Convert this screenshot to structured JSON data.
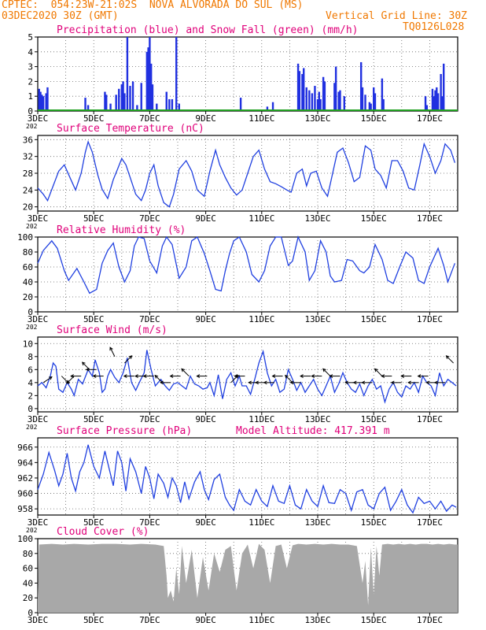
{
  "header": {
    "line1": "CPTEC:  054:23W-21:02S  NOVA ALVORADA DO SUL (MS)",
    "line2_left": "03DEC2020 30Z (GMT)",
    "line2_right": "Vertical Grid Line: 30Z",
    "code": "TQ0126L028"
  },
  "colors": {
    "header": "#f07800",
    "title": "#e0007a",
    "line": "#2040e0",
    "bar": "#2030e0",
    "snow": "#20a020",
    "cloud": "#a8a8a8",
    "wind": "#000000"
  },
  "x_labels": [
    "3DEC",
    "5DEC",
    "7DEC",
    "9DEC",
    "11DEC",
    "13DEC",
    "15DEC",
    "17DEC"
  ],
  "year_stub": "202",
  "chart_data": [
    {
      "type": "bar",
      "title": "Precipitation (blue) and Snow Fall (green) (mm/h)",
      "ylim": [
        0,
        5
      ],
      "yticks": [
        0,
        1,
        2,
        3,
        4,
        5
      ],
      "bars": [
        [
          0.05,
          1.5
        ],
        [
          0.1,
          1.3
        ],
        [
          0.15,
          1.1
        ],
        [
          0.2,
          1.0
        ],
        [
          0.3,
          1.2
        ],
        [
          0.35,
          1.6
        ],
        [
          1.7,
          0.9
        ],
        [
          1.8,
          0.4
        ],
        [
          2.4,
          1.3
        ],
        [
          2.45,
          1.1
        ],
        [
          2.6,
          0.5
        ],
        [
          2.8,
          1.1
        ],
        [
          2.9,
          1.5
        ],
        [
          3.0,
          1.8
        ],
        [
          3.05,
          2.0
        ],
        [
          3.1,
          1.2
        ],
        [
          3.2,
          5.0
        ],
        [
          3.3,
          1.7
        ],
        [
          3.4,
          2.0
        ],
        [
          3.55,
          0.4
        ],
        [
          3.7,
          1.9
        ],
        [
          3.9,
          4.0
        ],
        [
          3.95,
          4.3
        ],
        [
          4.0,
          5.0
        ],
        [
          4.05,
          3.2
        ],
        [
          4.1,
          1.8
        ],
        [
          4.25,
          0.5
        ],
        [
          4.6,
          1.3
        ],
        [
          4.7,
          0.8
        ],
        [
          4.8,
          0.8
        ],
        [
          4.95,
          5.0
        ],
        [
          5.05,
          0.5
        ],
        [
          7.25,
          0.9
        ],
        [
          8.2,
          0.3
        ],
        [
          8.4,
          0.6
        ],
        [
          9.3,
          3.2
        ],
        [
          9.35,
          2.7
        ],
        [
          9.45,
          2.5
        ],
        [
          9.5,
          2.9
        ],
        [
          9.6,
          1.6
        ],
        [
          9.7,
          1.4
        ],
        [
          9.8,
          1.2
        ],
        [
          9.9,
          1.7
        ],
        [
          10.0,
          0.8
        ],
        [
          10.05,
          1.3
        ],
        [
          10.1,
          0.8
        ],
        [
          10.2,
          2.3
        ],
        [
          10.25,
          2.0
        ],
        [
          10.6,
          1.9
        ],
        [
          10.65,
          3.0
        ],
        [
          10.75,
          1.3
        ],
        [
          10.8,
          1.4
        ],
        [
          10.95,
          1.0
        ],
        [
          11.55,
          3.3
        ],
        [
          11.6,
          1.6
        ],
        [
          11.7,
          1.1
        ],
        [
          11.85,
          0.6
        ],
        [
          11.9,
          0.5
        ],
        [
          12.0,
          1.6
        ],
        [
          12.05,
          1.2
        ],
        [
          12.3,
          2.2
        ],
        [
          12.35,
          0.8
        ],
        [
          13.85,
          1.0
        ],
        [
          13.9,
          0.4
        ],
        [
          14.1,
          1.5
        ],
        [
          14.15,
          1.0
        ],
        [
          14.2,
          1.4
        ],
        [
          14.25,
          1.6
        ],
        [
          14.3,
          1.2
        ],
        [
          14.4,
          2.5
        ],
        [
          14.45,
          1.0
        ],
        [
          14.5,
          3.2
        ]
      ],
      "snow": 0
    },
    {
      "type": "line",
      "title": "Surface Temperature (nC)",
      "ylim": [
        19,
        37
      ],
      "yticks": [
        20,
        24,
        28,
        32,
        36
      ],
      "x": [
        0.0,
        0.2,
        0.35,
        0.55,
        0.75,
        0.95,
        1.15,
        1.35,
        1.55,
        1.7,
        1.8,
        1.95,
        2.15,
        2.3,
        2.5,
        2.7,
        2.85,
        3.0,
        3.15,
        3.35,
        3.5,
        3.7,
        3.85,
        4.0,
        4.15,
        4.3,
        4.5,
        4.7,
        4.85,
        5.05,
        5.3,
        5.5,
        5.7,
        5.95,
        6.15,
        6.35,
        6.5,
        6.7,
        6.9,
        7.1,
        7.3,
        7.5,
        7.7,
        7.9,
        8.1,
        8.3,
        8.5,
        8.7,
        8.9,
        9.05,
        9.25,
        9.45,
        9.6,
        9.75,
        9.95,
        10.15,
        10.35,
        10.55,
        10.7,
        10.9,
        11.1,
        11.3,
        11.5,
        11.7,
        11.9,
        12.05,
        12.25,
        12.45,
        12.65,
        12.85,
        13.05,
        13.25,
        13.45,
        13.65,
        13.8,
        14.0,
        14.2,
        14.4,
        14.55,
        14.75,
        14.9
      ],
      "y": [
        24.5,
        23,
        21.5,
        25,
        28.5,
        30,
        27,
        24,
        28,
        33,
        35.5,
        33,
        27.5,
        24.2,
        22,
        26.5,
        29,
        31.5,
        30,
        26,
        23,
        21.5,
        24,
        28,
        30,
        25,
        21,
        20,
        23,
        29,
        31,
        28.5,
        24,
        22.5,
        28.5,
        33.5,
        30,
        27,
        24.5,
        22.8,
        24,
        28,
        32,
        33.5,
        29,
        26,
        25.5,
        24.8,
        24,
        23.5,
        28,
        29,
        25,
        28,
        28.5,
        24.5,
        22.5,
        28.5,
        33,
        34,
        30.5,
        26,
        27,
        34.5,
        33.5,
        29,
        27.5,
        24.5,
        31,
        31,
        28.5,
        24.5,
        24,
        30,
        35,
        32,
        28,
        31,
        35,
        33.5,
        30.5
      ]
    },
    {
      "type": "line",
      "title": "Relative Humidity (%)",
      "ylim": [
        0,
        100
      ],
      "yticks": [
        0,
        20,
        40,
        60,
        80,
        100
      ],
      "x": [
        0.0,
        0.2,
        0.5,
        0.7,
        0.95,
        1.1,
        1.4,
        1.65,
        1.85,
        2.1,
        2.3,
        2.5,
        2.7,
        2.9,
        3.1,
        3.3,
        3.45,
        3.6,
        3.8,
        4.0,
        4.25,
        4.45,
        4.6,
        4.8,
        5.05,
        5.3,
        5.5,
        5.7,
        5.95,
        6.15,
        6.35,
        6.55,
        6.7,
        6.85,
        7.0,
        7.2,
        7.45,
        7.65,
        7.9,
        8.1,
        8.3,
        8.5,
        8.7,
        8.95,
        9.1,
        9.3,
        9.55,
        9.7,
        9.9,
        10.1,
        10.3,
        10.45,
        10.6,
        10.85,
        11.05,
        11.25,
        11.5,
        11.65,
        11.85,
        12.05,
        12.3,
        12.5,
        12.7,
        12.95,
        13.15,
        13.4,
        13.6,
        13.8,
        14.0,
        14.3,
        14.5,
        14.65,
        14.9
      ],
      "y": [
        65,
        82,
        95,
        85,
        55,
        42,
        58,
        40,
        25,
        30,
        65,
        82,
        92,
        60,
        40,
        55,
        88,
        100,
        98,
        68,
        52,
        88,
        100,
        90,
        45,
        60,
        95,
        100,
        78,
        55,
        30,
        28,
        55,
        78,
        95,
        100,
        80,
        50,
        40,
        55,
        88,
        100,
        100,
        62,
        68,
        100,
        80,
        42,
        55,
        95,
        80,
        48,
        40,
        42,
        70,
        68,
        55,
        52,
        60,
        90,
        70,
        42,
        38,
        62,
        80,
        72,
        42,
        38,
        60,
        85,
        62,
        40,
        65
      ]
    },
    {
      "type": "line",
      "title": "Surface Wind (m/s)",
      "ylim": [
        -0.5,
        11
      ],
      "yticks": [
        0,
        2,
        4,
        6,
        8,
        10
      ],
      "x": [
        0.0,
        0.15,
        0.3,
        0.45,
        0.55,
        0.65,
        0.75,
        0.9,
        1.05,
        1.2,
        1.3,
        1.45,
        1.6,
        1.8,
        1.95,
        2.05,
        2.2,
        2.3,
        2.4,
        2.5,
        2.6,
        2.75,
        2.9,
        3.05,
        3.2,
        3.35,
        3.5,
        3.65,
        3.8,
        3.9,
        4.05,
        4.2,
        4.4,
        4.55,
        4.7,
        4.85,
        5.0,
        5.15,
        5.3,
        5.45,
        5.6,
        5.75,
        5.9,
        6.05,
        6.15,
        6.3,
        6.45,
        6.6,
        6.75,
        6.9,
        7.05,
        7.2,
        7.3,
        7.45,
        7.6,
        7.75,
        7.9,
        8.05,
        8.2,
        8.35,
        8.5,
        8.65,
        8.8,
        8.95,
        9.1,
        9.25,
        9.4,
        9.55,
        9.7,
        9.85,
        10.0,
        10.15,
        10.3,
        10.45,
        10.6,
        10.75,
        10.9,
        11.05,
        11.2,
        11.35,
        11.5,
        11.65,
        11.8,
        11.95,
        12.1,
        12.25,
        12.4,
        12.55,
        12.7,
        12.85,
        13.0,
        13.15,
        13.3,
        13.45,
        13.6,
        13.75,
        13.9,
        14.05,
        14.2,
        14.35,
        14.5,
        14.65,
        14.8,
        14.95
      ],
      "y": [
        3.5,
        4.0,
        3.2,
        5.0,
        7.0,
        6.5,
        3.0,
        2.5,
        4.0,
        3.0,
        2.0,
        4.5,
        3.8,
        6.0,
        5.0,
        7.5,
        5.5,
        2.5,
        3.0,
        5.0,
        6.0,
        4.8,
        4.0,
        5.5,
        7.8,
        4.0,
        2.8,
        4.2,
        5.5,
        9.0,
        6.0,
        3.5,
        4.5,
        3.5,
        2.8,
        3.8,
        4.0,
        3.5,
        3.0,
        5.0,
        3.8,
        3.5,
        3.0,
        3.2,
        4.0,
        2.0,
        5.2,
        1.5,
        4.5,
        5.5,
        3.5,
        5.0,
        3.5,
        3.5,
        2.2,
        4.5,
        7.0,
        8.8,
        5.5,
        3.5,
        4.5,
        2.5,
        3.0,
        6.0,
        4.5,
        2.8,
        4.0,
        2.5,
        3.5,
        4.5,
        3.0,
        2.0,
        3.5,
        5.0,
        2.5,
        3.8,
        5.5,
        4.0,
        3.0,
        2.5,
        3.8,
        2.0,
        3.5,
        4.5,
        3.0,
        3.5,
        1.0,
        3.0,
        4.0,
        2.5,
        1.8,
        3.5,
        3.0,
        4.0,
        2.5,
        5.0,
        4.0,
        3.5,
        2.0,
        5.5,
        3.5,
        4.5,
        4.0,
        3.5
      ],
      "arrows": [
        [
          0.2,
          4,
          1.5,
          1
        ],
        [
          0.85,
          5,
          1,
          -1
        ],
        [
          1.3,
          5,
          -1,
          -1
        ],
        [
          1.55,
          5,
          -1,
          0
        ],
        [
          1.85,
          6,
          -1,
          1
        ],
        [
          2.1,
          6,
          -1,
          0
        ],
        [
          2.35,
          5,
          -1,
          0
        ],
        [
          2.75,
          8,
          -0.5,
          1
        ],
        [
          3.1,
          7,
          1,
          1
        ],
        [
          3.45,
          5,
          -1,
          0
        ],
        [
          3.85,
          5,
          -1,
          0
        ],
        [
          4.15,
          5,
          -1,
          0
        ],
        [
          4.45,
          4,
          -1,
          1
        ],
        [
          4.75,
          4,
          -1,
          0
        ],
        [
          5.1,
          5,
          -1,
          0
        ],
        [
          5.4,
          5,
          -1,
          1
        ],
        [
          6.05,
          5,
          -1,
          0
        ],
        [
          6.9,
          4,
          1,
          1
        ],
        [
          7.4,
          5,
          -1,
          0
        ],
        [
          7.9,
          4,
          -1,
          0
        ],
        [
          8.15,
          4,
          -1,
          0
        ],
        [
          8.45,
          4,
          -1,
          0
        ],
        [
          8.75,
          5,
          -1,
          0
        ],
        [
          9.1,
          4,
          -1,
          1
        ],
        [
          9.4,
          4,
          -1,
          0
        ],
        [
          9.75,
          5,
          -1,
          0
        ],
        [
          10.15,
          5,
          -1,
          0
        ],
        [
          10.45,
          5,
          -1,
          1
        ],
        [
          10.8,
          5,
          -1,
          0
        ],
        [
          11.35,
          4,
          -1,
          0
        ],
        [
          11.65,
          4,
          -1,
          0
        ],
        [
          11.95,
          4,
          -1,
          0
        ],
        [
          12.3,
          5,
          -1,
          1
        ],
        [
          12.65,
          5,
          -1,
          0
        ],
        [
          13.0,
          4,
          -1,
          0
        ],
        [
          13.35,
          5,
          -1,
          0
        ],
        [
          13.6,
          4,
          -1,
          0
        ],
        [
          13.95,
          5,
          -1,
          0
        ],
        [
          14.25,
          4,
          -1,
          0
        ],
        [
          14.55,
          4,
          -1,
          0
        ],
        [
          14.85,
          7,
          -1,
          1
        ]
      ]
    },
    {
      "type": "line",
      "title": "Surface Pressure (hPa)",
      "subtitle": "Model Altitude: 417.391  m",
      "ylim": [
        957.2,
        967.2
      ],
      "yticks": [
        958,
        960,
        962,
        964,
        966
      ],
      "x": [
        0.0,
        0.2,
        0.4,
        0.6,
        0.75,
        0.9,
        1.05,
        1.2,
        1.35,
        1.5,
        1.65,
        1.8,
        2.0,
        2.2,
        2.4,
        2.55,
        2.7,
        2.85,
        3.0,
        3.15,
        3.3,
        3.5,
        3.7,
        3.85,
        4.0,
        4.15,
        4.3,
        4.5,
        4.65,
        4.8,
        4.95,
        5.1,
        5.25,
        5.4,
        5.6,
        5.8,
        5.95,
        6.1,
        6.3,
        6.5,
        6.7,
        6.85,
        7.0,
        7.2,
        7.4,
        7.6,
        7.8,
        8.0,
        8.2,
        8.4,
        8.6,
        8.8,
        9.0,
        9.2,
        9.4,
        9.6,
        9.8,
        10.0,
        10.2,
        10.4,
        10.6,
        10.8,
        11.0,
        11.2,
        11.4,
        11.6,
        11.8,
        12.0,
        12.2,
        12.4,
        12.6,
        12.8,
        13.0,
        13.2,
        13.4,
        13.6,
        13.8,
        14.0,
        14.2,
        14.4,
        14.6,
        14.8,
        14.95
      ],
      "y": [
        960.5,
        962.5,
        965.3,
        963,
        961,
        962.5,
        965.2,
        962,
        960.3,
        962.8,
        964,
        966.3,
        963.5,
        962,
        965.5,
        963.2,
        961,
        965.5,
        964,
        960.3,
        964.5,
        962.8,
        960,
        963.5,
        962,
        959.3,
        962.5,
        961.3,
        959.5,
        962,
        961,
        958.8,
        961.5,
        959.3,
        961.5,
        962.8,
        960.5,
        959.2,
        961.8,
        962.5,
        959.5,
        958.5,
        957.8,
        960.5,
        959,
        958.5,
        960.5,
        959,
        958.3,
        961,
        959,
        958.7,
        961,
        958.5,
        958,
        960.5,
        959,
        958.3,
        961,
        958.8,
        958.7,
        960.5,
        960,
        957.8,
        960.2,
        960.5,
        958.5,
        958,
        960,
        960.8,
        957.8,
        959,
        960.5,
        958.5,
        957.5,
        959.5,
        958.7,
        959,
        958,
        959,
        957.7,
        958.5,
        958.2
      ]
    },
    {
      "type": "area",
      "title": "Cloud Cover (%)",
      "ylim": [
        0,
        100
      ],
      "yticks": [
        0,
        20,
        40,
        60,
        80,
        100
      ],
      "x": [
        0.0,
        0.05,
        0.5,
        0.9,
        1.3,
        1.8,
        2.3,
        2.8,
        3.3,
        3.7,
        4.2,
        4.5,
        4.6,
        4.65,
        4.75,
        4.85,
        4.95,
        5.05,
        5.15,
        5.3,
        5.5,
        5.7,
        5.9,
        6.1,
        6.3,
        6.5,
        6.7,
        6.9,
        7.1,
        7.3,
        7.5,
        7.7,
        7.9,
        8.1,
        8.3,
        8.5,
        8.7,
        8.9,
        9.1,
        9.3,
        9.6,
        9.9,
        10.2,
        10.5,
        10.8,
        11.1,
        11.4,
        11.6,
        11.7,
        11.8,
        11.9,
        12.0,
        12.1,
        12.2,
        12.3,
        12.5,
        12.7,
        12.9,
        13.1,
        13.3,
        13.5,
        13.7,
        13.9,
        14.1,
        14.3,
        14.5,
        14.7,
        14.9,
        15.0
      ],
      "y": [
        20,
        92,
        93,
        92,
        93,
        92,
        93,
        93,
        92,
        93,
        92,
        90,
        50,
        20,
        30,
        15,
        60,
        25,
        90,
        40,
        85,
        20,
        75,
        30,
        80,
        55,
        85,
        90,
        30,
        80,
        92,
        60,
        93,
        85,
        40,
        90,
        92,
        60,
        91,
        93,
        92,
        93,
        92,
        93,
        92,
        92,
        90,
        40,
        70,
        10,
        88,
        25,
        90,
        50,
        92,
        93,
        92,
        93,
        92,
        93,
        92,
        93,
        93,
        92,
        93,
        92,
        93,
        92,
        92
      ]
    }
  ]
}
